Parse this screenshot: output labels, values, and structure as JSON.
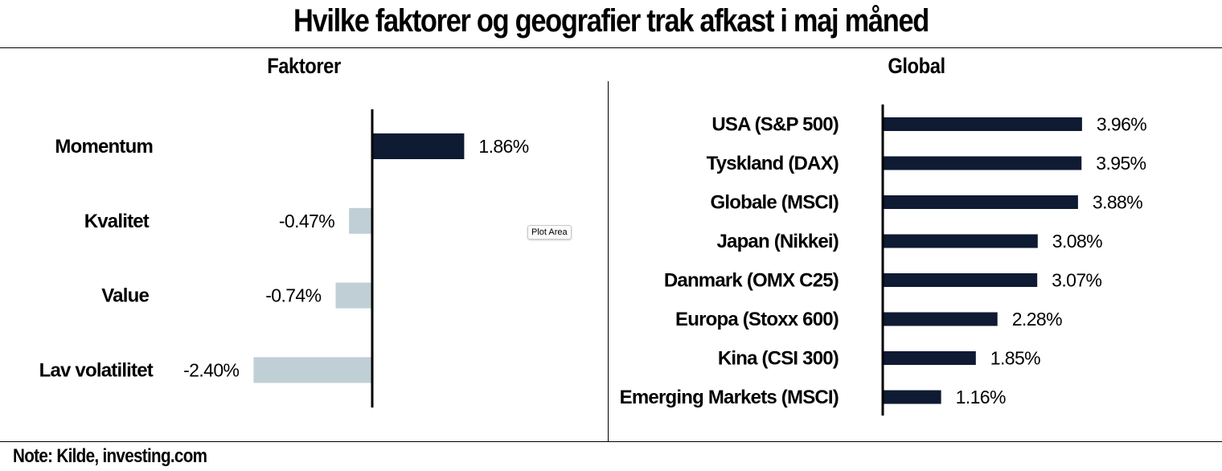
{
  "header": {
    "title": "Hvilke faktorer og geografier trak afkast i maj måned"
  },
  "tooltip": {
    "label": "Plot Area"
  },
  "footer": {
    "note": "Note: Kilde, investing.com"
  },
  "chart_data": [
    {
      "type": "bar",
      "orientation": "horizontal",
      "title": "Faktorer",
      "categories": [
        "Momentum",
        "Kvalitet",
        "Value",
        "Lav volatilitet"
      ],
      "values": [
        1.86,
        -0.47,
        -0.74,
        -2.4
      ],
      "value_labels": [
        "1.86%",
        "-0.47%",
        "-0.74%",
        "-2.40%"
      ],
      "unit": "%",
      "colors": {
        "positive": "#0f1a33",
        "negative": "#c0cfd6"
      }
    },
    {
      "type": "bar",
      "orientation": "horizontal",
      "title": "Global",
      "categories": [
        "USA (S&P 500)",
        "Tyskland (DAX)",
        "Globale (MSCI)",
        "Japan (Nikkei)",
        "Danmark (OMX C25)",
        "Europa (Stoxx 600)",
        "Kina (CSI 300)",
        "Emerging Markets (MSCI)"
      ],
      "values": [
        3.96,
        3.95,
        3.88,
        3.08,
        3.07,
        2.28,
        1.85,
        1.16
      ],
      "value_labels": [
        "3.96%",
        "3.95%",
        "3.88%",
        "3.08%",
        "3.07%",
        "2.28%",
        "1.85%",
        "1.16%"
      ],
      "unit": "%",
      "colors": {
        "positive": "#0f1a33"
      }
    }
  ]
}
